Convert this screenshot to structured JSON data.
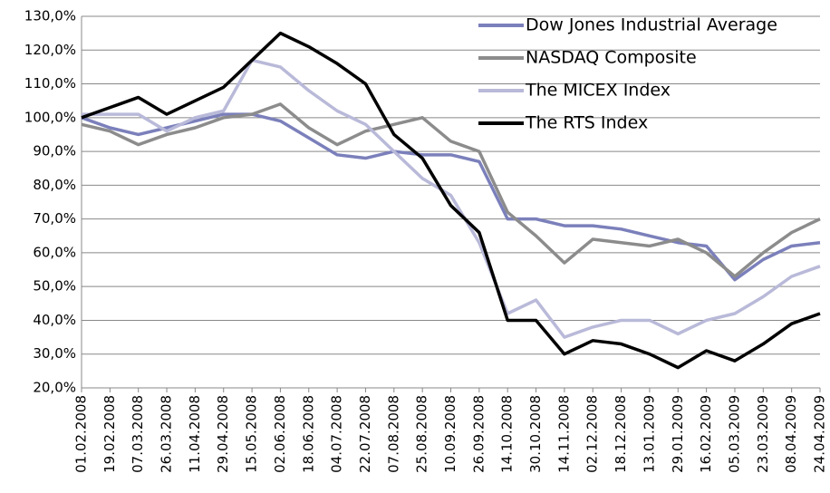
{
  "chart_data": {
    "type": "line",
    "categories": [
      "01.02.2008",
      "19.02.2008",
      "07.03.2008",
      "26.03.2008",
      "11.04.2008",
      "29.04.2008",
      "15.05.2008",
      "02.06.2008",
      "18.06.2008",
      "04.07.2008",
      "22.07.2008",
      "07.08.2008",
      "25.08.2008",
      "10.09.2008",
      "26.09.2008",
      "14.10.2008",
      "30.10.2008",
      "14.11.2008",
      "02.12.2008",
      "18.12.2008",
      "13.01.2009",
      "29.01.2009",
      "16.02.2009",
      "05.03.2009",
      "23.03.2009",
      "08.04.2009",
      "24.04.2009"
    ],
    "series": [
      {
        "name": "Dow Jones Industrial Average",
        "color": "#7b80bb",
        "values": [
          100,
          97,
          95,
          97,
          99,
          101,
          101,
          99,
          94,
          89,
          88,
          90,
          89,
          89,
          87,
          70,
          70,
          68,
          68,
          67,
          65,
          63,
          62,
          52,
          58,
          62,
          63
        ]
      },
      {
        "name": "NASDAQ Composite",
        "color": "#8c8c8c",
        "values": [
          98,
          96,
          92,
          95,
          97,
          100,
          101,
          104,
          97,
          92,
          96,
          98,
          100,
          93,
          90,
          72,
          65,
          57,
          64,
          63,
          62,
          64,
          60,
          53,
          60,
          66,
          70
        ]
      },
      {
        "name": "The MICEX Index",
        "color": "#b9b9d9",
        "values": [
          101,
          101,
          101,
          96,
          100,
          102,
          117,
          115,
          108,
          102,
          98,
          90,
          82,
          77,
          63,
          42,
          46,
          35,
          38,
          40,
          40,
          36,
          40,
          42,
          47,
          53,
          56
        ]
      },
      {
        "name": "The RTS Index",
        "color": "#000000",
        "values": [
          100,
          103,
          106,
          101,
          105,
          109,
          117,
          125,
          121,
          116,
          110,
          95,
          88,
          74,
          66,
          40,
          40,
          30,
          34,
          33,
          30,
          26,
          31,
          28,
          33,
          39,
          42
        ]
      }
    ],
    "ylim": [
      20,
      130
    ],
    "yticks": [
      {
        "value": 20,
        "label": "20,0%"
      },
      {
        "value": 30,
        "label": "30,0%"
      },
      {
        "value": 40,
        "label": "40,0%"
      },
      {
        "value": 50,
        "label": "50,0%"
      },
      {
        "value": 60,
        "label": "60,0%"
      },
      {
        "value": 70,
        "label": "70,0%"
      },
      {
        "value": 80,
        "label": "80,0%"
      },
      {
        "value": 90,
        "label": "90,0%"
      },
      {
        "value": 100,
        "label": "100,0%"
      },
      {
        "value": 110,
        "label": "110,0%"
      },
      {
        "value": 120,
        "label": "120,0%"
      },
      {
        "value": 130,
        "label": "130,0%"
      }
    ],
    "grid": true,
    "legend": "top-right"
  }
}
